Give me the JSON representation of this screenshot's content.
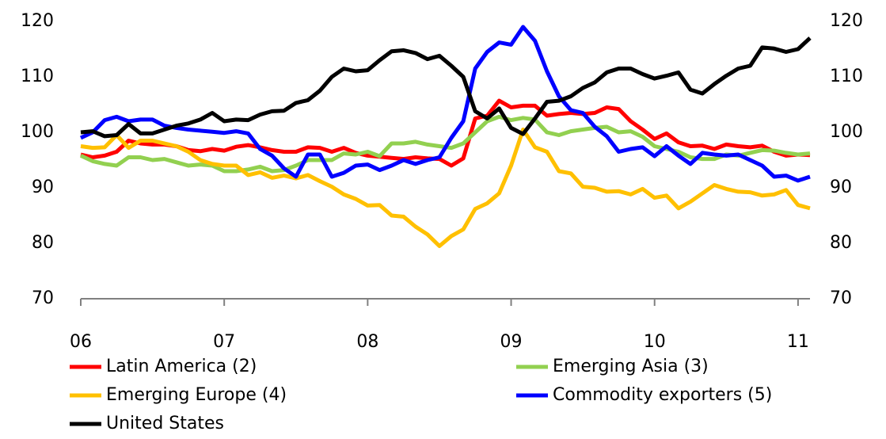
{
  "chart_data": {
    "type": "line",
    "x": [
      0,
      1,
      2,
      3,
      4,
      5,
      6,
      7,
      8,
      9,
      10,
      11,
      12,
      13,
      14,
      15,
      16,
      17,
      18,
      19,
      20,
      21,
      22,
      23,
      24,
      25,
      26,
      27,
      28,
      29,
      30,
      31,
      32,
      33,
      34,
      35,
      36,
      37,
      38,
      39,
      40,
      41,
      42,
      43,
      44,
      45,
      46,
      47,
      48,
      49,
      50,
      51,
      52,
      53,
      54,
      55,
      56,
      57,
      58,
      59,
      60,
      61
    ],
    "xlim": [
      0,
      61
    ],
    "xticks": [
      {
        "value": 0,
        "label": "06"
      },
      {
        "value": 12,
        "label": "07"
      },
      {
        "value": 24,
        "label": "08"
      },
      {
        "value": 36,
        "label": "09"
      },
      {
        "value": 48,
        "label": "10"
      },
      {
        "value": 60,
        "label": "11"
      }
    ],
    "ylim": [
      70,
      120
    ],
    "yticks": [
      70,
      80,
      90,
      100,
      110,
      120
    ],
    "y2lim": [
      70,
      120
    ],
    "y2ticks": [
      70,
      80,
      90,
      100,
      110,
      120
    ],
    "series": [
      {
        "name": "Latin America (2)",
        "color": "#ff0000",
        "values": [
          96,
          95.5,
          95.8,
          96.5,
          98.5,
          98,
          97.8,
          97.8,
          97.5,
          96.8,
          96.6,
          97,
          96.7,
          97.4,
          97.7,
          97.3,
          96.8,
          96.5,
          96.5,
          97.3,
          97.2,
          96.5,
          97.2,
          96.3,
          95.8,
          95.6,
          95.4,
          95.2,
          95.5,
          95.3,
          95.2,
          94,
          95.3,
          102.5,
          103,
          105.7,
          104.5,
          104.8,
          104.8,
          103,
          103.3,
          103.5,
          103.3,
          103.5,
          104.5,
          104.2,
          102,
          100.5,
          98.8,
          99.8,
          98.2,
          97.5,
          97.6,
          97,
          97.8,
          97.5,
          97.3,
          97.6,
          96.5,
          95.8,
          96,
          95.9
        ]
      },
      {
        "name": "Emerging Asia (3)",
        "color": "#92d050",
        "values": [
          95.8,
          94.8,
          94.3,
          94,
          95.5,
          95.5,
          95,
          95.2,
          94.6,
          94,
          94.2,
          94,
          93,
          93,
          93.3,
          93.8,
          93,
          93.2,
          94,
          95,
          95,
          95,
          96.2,
          96,
          96.5,
          95.7,
          98,
          98,
          98.3,
          97.8,
          97.5,
          97.2,
          98,
          100,
          102,
          102.8,
          102.2,
          102.6,
          102.3,
          100,
          99.5,
          100.2,
          100.5,
          100.8,
          101,
          100,
          100.2,
          99.2,
          97.5,
          97,
          96.5,
          95.5,
          95.2,
          95.2,
          96,
          95.8,
          96.3,
          96.8,
          96.7,
          96.3,
          96,
          96.2
        ]
      },
      {
        "name": "Emerging Europe (4)",
        "color": "#ffc000",
        "values": [
          97.5,
          97.2,
          97.3,
          99.5,
          97.2,
          98.5,
          98.5,
          98,
          97.5,
          96.5,
          95,
          94.3,
          94,
          94,
          92.3,
          92.8,
          91.8,
          92.2,
          91.7,
          92.3,
          91.2,
          90.2,
          88.8,
          88,
          86.8,
          86.9,
          85,
          84.8,
          83,
          81.6,
          79.5,
          81.3,
          82.5,
          86.2,
          87.2,
          89,
          94,
          100.5,
          97.3,
          96.5,
          93,
          92.6,
          90.2,
          90,
          89.3,
          89.4,
          88.8,
          89.8,
          88.2,
          88.6,
          86.3,
          87.5,
          89,
          90.5,
          89.8,
          89.3,
          89.2,
          88.6,
          88.8,
          89.6,
          86.9,
          86.3
        ]
      },
      {
        "name": "Commodity exporters (5)",
        "color": "#0000ff",
        "values": [
          99,
          100,
          102.2,
          102.8,
          102,
          102.3,
          102.3,
          101.2,
          100.8,
          100.5,
          100.3,
          100.1,
          99.9,
          100.2,
          99.8,
          97,
          95.8,
          93.5,
          92,
          96,
          96,
          92,
          92.7,
          94,
          94.2,
          93.2,
          94,
          95,
          94.3,
          95,
          95.5,
          99,
          102,
          111.5,
          114.5,
          116.2,
          115.8,
          119,
          116.5,
          111,
          106.5,
          104,
          103.5,
          101,
          99.3,
          96.5,
          97,
          97.3,
          95.7,
          97.5,
          95.8,
          94.3,
          96.3,
          96,
          95.8,
          96,
          95,
          94,
          92,
          92.2,
          91.3,
          92
        ]
      },
      {
        "name": "United States",
        "color": "#000000",
        "values": [
          100,
          100.2,
          99.3,
          99.5,
          101.5,
          99.8,
          99.8,
          100.5,
          101.2,
          101.6,
          102.3,
          103.5,
          102,
          102.3,
          102.2,
          103.2,
          103.8,
          103.9,
          105.3,
          105.8,
          107.5,
          110,
          111.5,
          111,
          111.2,
          113,
          114.6,
          114.8,
          114.3,
          113.2,
          113.8,
          112,
          110,
          103.8,
          102.5,
          104.3,
          100.8,
          99.7,
          102.5,
          105.5,
          105.7,
          106.5,
          108,
          109,
          110.8,
          111.5,
          111.5,
          110.5,
          109.7,
          110.2,
          110.8,
          107.7,
          107,
          108.7,
          110.2,
          111.5,
          112,
          115.3,
          115.1,
          114.5,
          115,
          117
        ]
      }
    ]
  }
}
